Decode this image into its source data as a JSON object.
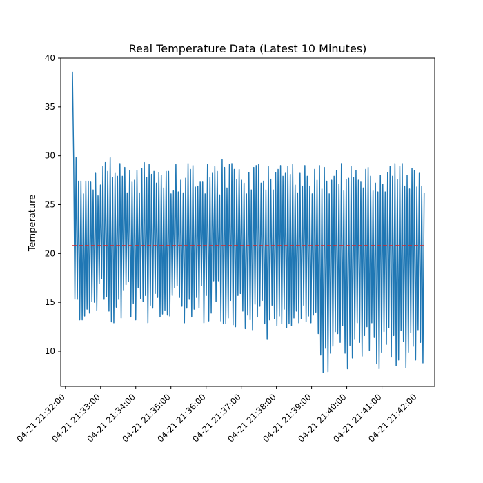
{
  "chart_data": {
    "type": "line",
    "title": "Real Temperature Data (Latest 10 Minutes)",
    "xlabel": "",
    "ylabel": "Temperature",
    "grid": false,
    "ylim": [
      6.4,
      40.0
    ],
    "xlim": [
      "2024-04-21T21:31:52",
      "2024-04-21T21:42:30"
    ],
    "x_tick_labels": [
      "04-21 21:32:00",
      "04-21 21:33:00",
      "04-21 21:34:00",
      "04-21 21:35:00",
      "04-21 21:36:00",
      "04-21 21:37:00",
      "04-21 21:38:00",
      "04-21 21:39:00",
      "04-21 21:40:00",
      "04-21 21:41:00",
      "04-21 21:42:00"
    ],
    "x_tick_times": [
      "2024-04-21T21:32:00",
      "2024-04-21T21:33:00",
      "2024-04-21T21:34:00",
      "2024-04-21T21:35:00",
      "2024-04-21T21:36:00",
      "2024-04-21T21:37:00",
      "2024-04-21T21:38:00",
      "2024-04-21T21:39:00",
      "2024-04-21T21:40:00",
      "2024-04-21T21:41:00",
      "2024-04-21T21:42:00"
    ],
    "y_ticks": [
      10,
      15,
      20,
      25,
      30,
      35,
      40
    ],
    "series": [
      {
        "color": "#1f77b4",
        "x_start": "2024-04-21T21:32:12",
        "x_end": "2024-04-21T21:42:12",
        "values": [
          38.6,
          29.7,
          15.3,
          29.8,
          15.3,
          27.4,
          13.2,
          27.4,
          13.2,
          26.1,
          13.6,
          27.4,
          14.3,
          27.4,
          13.9,
          27.3,
          15.1,
          26.5,
          15.0,
          28.2,
          14.2,
          25.9,
          16.9,
          27.0,
          17.4,
          28.9,
          15.3,
          29.3,
          15.6,
          28.4,
          14.1,
          29.8,
          13.0,
          27.8,
          12.9,
          28.2,
          14.5,
          27.9,
          15.3,
          29.2,
          13.4,
          27.9,
          16.2,
          28.8,
          16.8,
          26.2,
          17.1,
          28.5,
          13.5,
          27.3,
          14.9,
          27.5,
          13.2,
          28.5,
          16.5,
          26.2,
          15.4,
          28.7,
          15.1,
          29.3,
          15.7,
          27.8,
          12.9,
          29.1,
          14.7,
          28.1,
          14.4,
          28.4,
          15.9,
          27.2,
          15.5,
          28.3,
          13.5,
          28.0,
          13.8,
          26.7,
          14.2,
          28.4,
          13.7,
          28.4,
          13.6,
          26.1,
          15.7,
          26.4,
          16.5,
          29.1,
          16.7,
          26.3,
          15.5,
          27.5,
          14.6,
          26.2,
          12.9,
          27.7,
          14.4,
          29.2,
          15.3,
          28.6,
          13.5,
          29.0,
          14.3,
          26.8,
          15.5,
          26.9,
          14.4,
          27.3,
          16.7,
          27.3,
          12.9,
          26.1,
          15.7,
          29.1,
          13.1,
          27.8,
          13.9,
          28.2,
          17.2,
          28.9,
          15.1,
          28.4,
          17.2,
          26.0,
          13.1,
          29.6,
          12.8,
          28.8,
          12.8,
          26.7,
          13.4,
          29.1,
          15.2,
          29.2,
          12.7,
          28.6,
          12.5,
          27.6,
          15.7,
          28.6,
          15.9,
          27.5,
          14.1,
          27.2,
          12.3,
          26.1,
          13.7,
          28.3,
          13.2,
          26.5,
          12.2,
          28.8,
          14.8,
          29.0,
          13.5,
          29.1,
          14.6,
          27.2,
          15.2,
          27.4,
          12.8,
          26.5,
          11.2,
          28.9,
          13.2,
          27.6,
          14.7,
          26.5,
          13.3,
          28.3,
          12.6,
          28.6,
          13.6,
          29.0,
          12.8,
          27.9,
          14.3,
          28.2,
          12.4,
          28.9,
          12.8,
          28.1,
          12.6,
          29.1,
          13.4,
          27.0,
          14.1,
          26.2,
          12.9,
          28.2,
          13.3,
          26.9,
          14.7,
          29.0,
          13.0,
          27.9,
          13.6,
          26.9,
          12.9,
          26.1,
          13.7,
          28.6,
          14.0,
          27.5,
          11.8,
          29.0,
          9.6,
          26.6,
          7.8,
          28.8,
          10.3,
          27.4,
          7.9,
          26.1,
          9.8,
          27.5,
          10.5,
          27.9,
          12.0,
          28.5,
          11.8,
          27.1,
          10.9,
          29.2,
          12.6,
          26.4,
          9.8,
          27.6,
          8.2,
          27.7,
          10.6,
          28.9,
          9.3,
          27.8,
          11.2,
          28.5,
          12.9,
          27.5,
          10.9,
          27.3,
          9.5,
          26.7,
          11.6,
          28.6,
          12.5,
          28.8,
          10.1,
          27.9,
          12.9,
          26.4,
          11.4,
          27.2,
          8.7,
          26.3,
          8.2,
          28.0,
          9.9,
          27.1,
          12.0,
          26.3,
          10.7,
          28.3,
          12.4,
          28.9,
          9.4,
          27.9,
          11.6,
          29.2,
          8.5,
          27.6,
          9.1,
          28.9,
          12.1,
          29.2,
          11.0,
          26.9,
          8.3,
          28.0,
          9.9,
          26.6,
          11.9,
          28.7,
          10.5,
          28.5,
          9.1,
          26.8,
          12.2,
          28.2,
          10.9,
          26.9,
          8.8,
          26.2
        ]
      },
      {
        "color": "#d62728",
        "style": "dashed",
        "x_start": "2024-04-21T21:32:12",
        "x_end": "2024-04-21T21:42:12",
        "values": [
          20.8,
          20.8
        ]
      }
    ]
  }
}
